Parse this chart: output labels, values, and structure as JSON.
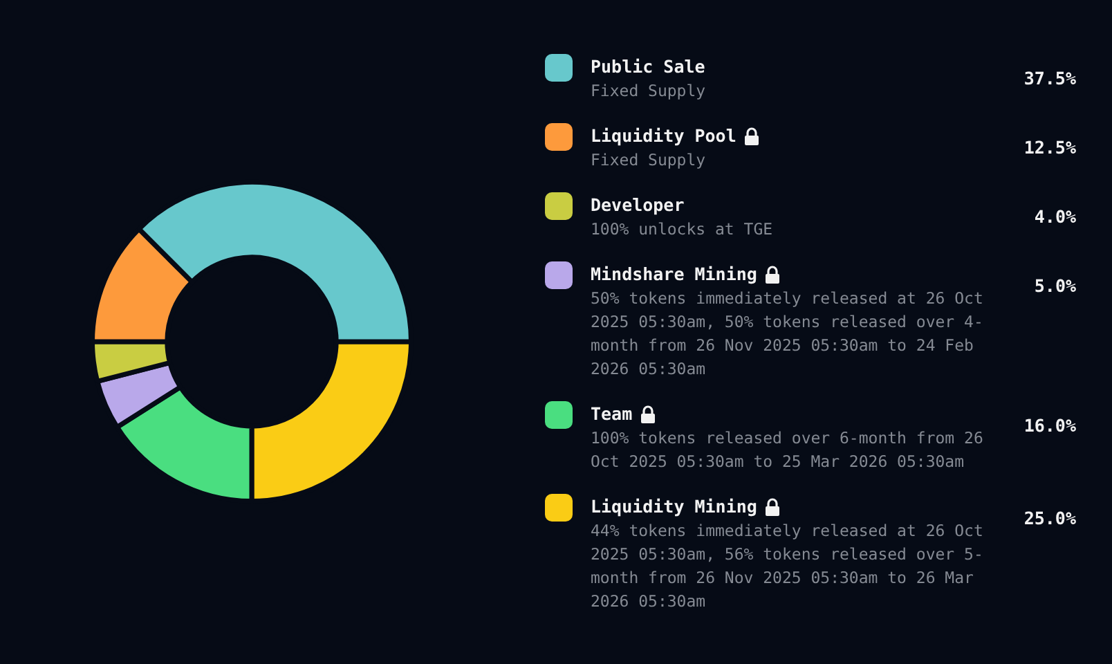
{
  "chart_data": {
    "type": "donut",
    "categories": [
      "Public Sale",
      "Liquidity Pool",
      "Developer",
      "Mindshare Mining",
      "Team",
      "Liquidity Mining"
    ],
    "values": [
      37.5,
      12.5,
      4.0,
      5.0,
      16.0,
      25.0
    ],
    "value_labels": [
      "37.5%",
      "12.5%",
      "4.0%",
      "5.0%",
      "16.0%",
      "25.0%"
    ],
    "colors": [
      "#67c8cc",
      "#fd9a3c",
      "#c9cd42",
      "#b9a8ea",
      "#4ade80",
      "#facc15"
    ],
    "annotations": [
      "Fixed Supply",
      "Fixed Supply",
      "100% unlocks at TGE",
      "50% tokens immediately released at 26 Oct 2025 05:30am, 50% tokens released over 4-month from 26 Nov 2025 05:30am to 24 Feb 2026 05:30am",
      "100% tokens released over 6-month from 26 Oct 2025 05:30am to 25 Mar 2026 05:30am",
      "44% tokens immediately released at 26 Oct 2025 05:30am, 56% tokens released over 5-month from 26 Nov 2025 05:30am to 26 Mar 2026 05:30am"
    ],
    "legend": "right"
  }
}
